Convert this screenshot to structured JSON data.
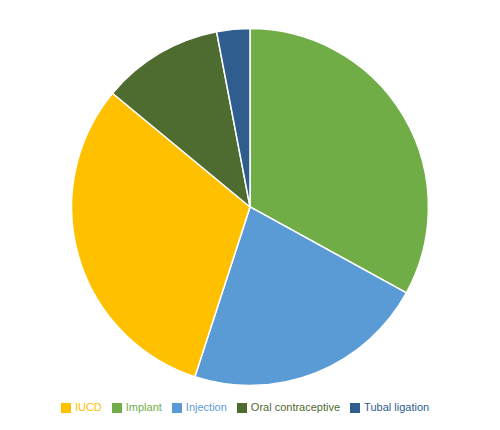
{
  "chart_data": {
    "type": "pie",
    "categories": [
      "Implant",
      "Injection",
      "IUCD",
      "Oral contraceptive",
      "Tubal ligation"
    ],
    "values": [
      33,
      22,
      31,
      11,
      3
    ],
    "colors": [
      "#70ad47",
      "#5b9bd5",
      "#ffc000",
      "#4e6b30",
      "#2e5d8e"
    ],
    "legend": "bottom"
  }
}
